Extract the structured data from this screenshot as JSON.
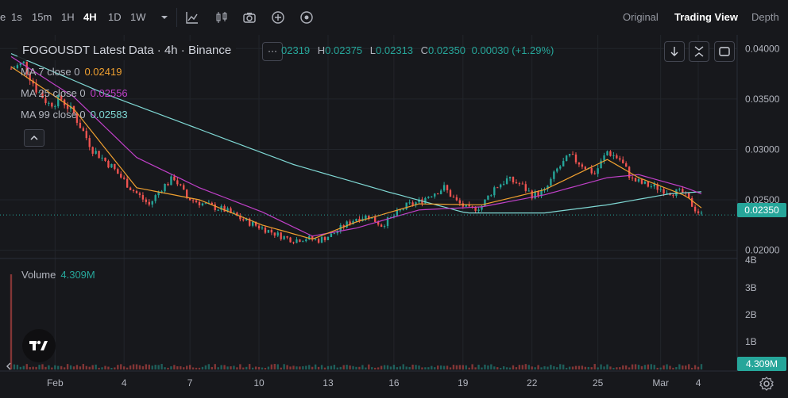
{
  "toolbar": {
    "partial_left": "e",
    "timeframes": [
      "1s",
      "15m",
      "1H",
      "4H",
      "1D",
      "1W"
    ],
    "active_timeframe": "4H",
    "icons": [
      "chevron-down-icon",
      "indicator-line-icon",
      "candle-type-icon",
      "camera-icon",
      "plus-circle-icon",
      "replay-icon"
    ],
    "views": [
      "Original",
      "Trading View",
      "Depth"
    ],
    "active_view": "Trading View"
  },
  "legend": {
    "title": "FOGOUSDT Latest Data · 4h · Binance",
    "ohlc_partial_open": "02319",
    "high_label": "H",
    "high": "0.02375",
    "low_label": "L",
    "low": "0.02313",
    "close_label": "C",
    "close": "0.02350",
    "change": "0.00030 (+1.29%)",
    "dots": "···"
  },
  "ma": [
    {
      "label": "MA 7 close 0",
      "value": "0.02419",
      "color": "#f0a030"
    },
    {
      "label": "MA 25 close 0",
      "value": "0.02556",
      "color": "#c040c8"
    },
    {
      "label": "MA 99 close 0",
      "value": "0.02583",
      "color": "#7fd8d4"
    }
  ],
  "volume": {
    "label": "Volume",
    "value": "4.309M",
    "tag": "4.309M"
  },
  "last_price_tag": "0.02350",
  "colors": {
    "up": "#26a69a",
    "down": "#ef5350",
    "background": "#17181c",
    "grid": "#22252b"
  },
  "chart_data": {
    "type": "candlestick",
    "title": "FOGOUSDT Latest Data · 4h · Binance",
    "price_axis_ticks": [
      "0.04000",
      "0.03500",
      "0.03000",
      "0.02500",
      "0.02000"
    ],
    "volume_axis_ticks": [
      "4B",
      "3B",
      "2B",
      "1B"
    ],
    "x_tick_labels": [
      "Feb",
      "4",
      "7",
      "10",
      "13",
      "16",
      "19",
      "22",
      "25",
      "Mar",
      "4"
    ],
    "ylim": [
      0.0195,
      0.0412
    ],
    "price_key_points": [
      [
        0,
        0.038
      ],
      [
        4,
        0.0385
      ],
      [
        8,
        0.036
      ],
      [
        12,
        0.0345
      ],
      [
        16,
        0.035
      ],
      [
        20,
        0.0335
      ],
      [
        26,
        0.03
      ],
      [
        32,
        0.0283
      ],
      [
        38,
        0.0262
      ],
      [
        44,
        0.0245
      ],
      [
        48,
        0.0262
      ],
      [
        52,
        0.0272
      ],
      [
        56,
        0.0252
      ],
      [
        62,
        0.0245
      ],
      [
        68,
        0.024
      ],
      [
        74,
        0.023
      ],
      [
        80,
        0.0222
      ],
      [
        86,
        0.0214
      ],
      [
        90,
        0.021
      ],
      [
        94,
        0.0212
      ],
      [
        98,
        0.021
      ],
      [
        102,
        0.0215
      ],
      [
        106,
        0.0224
      ],
      [
        110,
        0.0232
      ],
      [
        114,
        0.0234
      ],
      [
        118,
        0.0225
      ],
      [
        122,
        0.0234
      ],
      [
        126,
        0.0244
      ],
      [
        130,
        0.0248
      ],
      [
        134,
        0.0256
      ],
      [
        138,
        0.0262
      ],
      [
        142,
        0.0248
      ],
      [
        146,
        0.024
      ],
      [
        150,
        0.0244
      ],
      [
        154,
        0.0262
      ],
      [
        158,
        0.027
      ],
      [
        162,
        0.0266
      ],
      [
        166,
        0.0255
      ],
      [
        170,
        0.0258
      ],
      [
        174,
        0.028
      ],
      [
        178,
        0.0293
      ],
      [
        182,
        0.0285
      ],
      [
        186,
        0.0276
      ],
      [
        190,
        0.0298
      ],
      [
        194,
        0.029
      ],
      [
        198,
        0.027
      ],
      [
        202,
        0.0265
      ],
      [
        206,
        0.0262
      ],
      [
        210,
        0.0258
      ],
      [
        214,
        0.0257
      ],
      [
        218,
        0.0241
      ],
      [
        220,
        0.0235
      ]
    ],
    "ma7_points": [
      [
        0,
        0.0382
      ],
      [
        20,
        0.034
      ],
      [
        40,
        0.0262
      ],
      [
        60,
        0.025
      ],
      [
        80,
        0.0225
      ],
      [
        96,
        0.0211
      ],
      [
        110,
        0.0228
      ],
      [
        130,
        0.0246
      ],
      [
        150,
        0.0245
      ],
      [
        170,
        0.026
      ],
      [
        190,
        0.029
      ],
      [
        200,
        0.0272
      ],
      [
        215,
        0.0254
      ],
      [
        220,
        0.0242
      ]
    ],
    "ma25_points": [
      [
        0,
        0.0392
      ],
      [
        20,
        0.0352
      ],
      [
        40,
        0.0292
      ],
      [
        60,
        0.0262
      ],
      [
        80,
        0.0238
      ],
      [
        96,
        0.0214
      ],
      [
        110,
        0.0222
      ],
      [
        130,
        0.024
      ],
      [
        150,
        0.0243
      ],
      [
        170,
        0.0255
      ],
      [
        190,
        0.0272
      ],
      [
        200,
        0.0275
      ],
      [
        215,
        0.0262
      ],
      [
        220,
        0.0256
      ]
    ],
    "ma99_points": [
      [
        0,
        0.0395
      ],
      [
        30,
        0.0355
      ],
      [
        60,
        0.032
      ],
      [
        90,
        0.0285
      ],
      [
        120,
        0.0258
      ],
      [
        145,
        0.0237
      ],
      [
        170,
        0.0237
      ],
      [
        190,
        0.0245
      ],
      [
        210,
        0.0256
      ],
      [
        220,
        0.0258
      ]
    ]
  }
}
